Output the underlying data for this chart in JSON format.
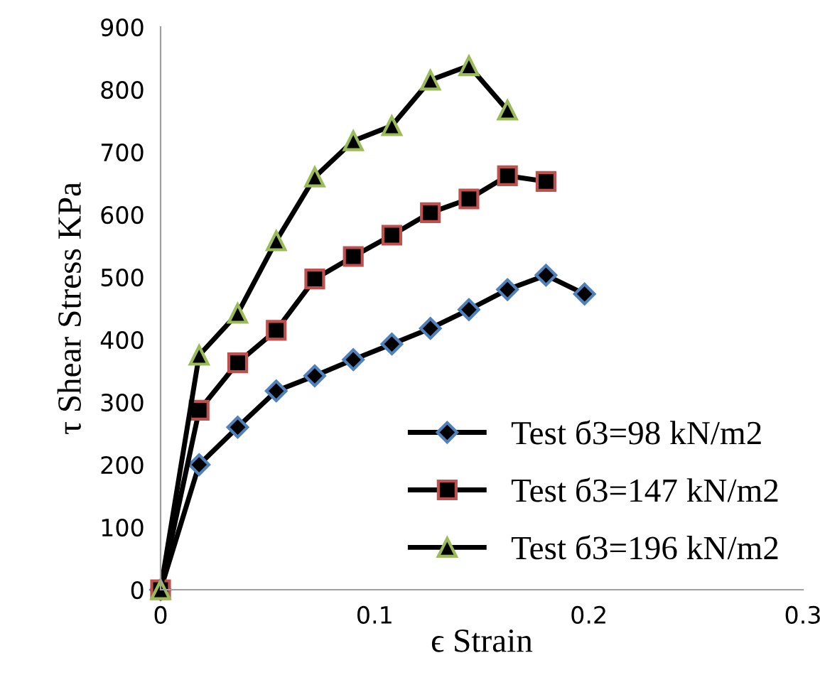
{
  "chart_data": {
    "type": "line",
    "xlabel": "ϵ Strain",
    "ylabel": "τ Shear Stress KPa",
    "xlim": [
      0,
      0.3
    ],
    "xticks": [
      0,
      0.1,
      0.2,
      0.3
    ],
    "ylim": [
      0,
      900
    ],
    "yticks": [
      0,
      100,
      200,
      300,
      400,
      500,
      600,
      700,
      800,
      900
    ],
    "grid": false,
    "legend": "bottom right",
    "line_style": "solid",
    "series": [
      {
        "name": "Test б3=98 kN/m2",
        "color": "#4f81bd",
        "marker": "diamond",
        "x": [
          0,
          0.018,
          0.036,
          0.054,
          0.072,
          0.09,
          0.108,
          0.126,
          0.144,
          0.162,
          0.18,
          0.198
        ],
        "values": [
          0,
          200,
          260,
          318,
          342,
          368,
          393,
          418,
          448,
          480,
          503,
          473
        ]
      },
      {
        "name": "Test б3=147 kN/m2",
        "color": "#c0504d",
        "marker": "square",
        "x": [
          0,
          0.018,
          0.036,
          0.054,
          0.072,
          0.09,
          0.108,
          0.126,
          0.144,
          0.162,
          0.18
        ],
        "values": [
          0,
          287,
          363,
          415,
          497,
          533,
          567,
          603,
          625,
          662,
          653
        ]
      },
      {
        "name": "Test б3=196 kN/m2",
        "color": "#9bbb59",
        "marker": "triangle",
        "x": [
          0,
          0.018,
          0.036,
          0.054,
          0.072,
          0.09,
          0.108,
          0.126,
          0.144,
          0.162
        ],
        "values": [
          0,
          375,
          442,
          558,
          660,
          718,
          742,
          815,
          838,
          767
        ]
      }
    ]
  }
}
